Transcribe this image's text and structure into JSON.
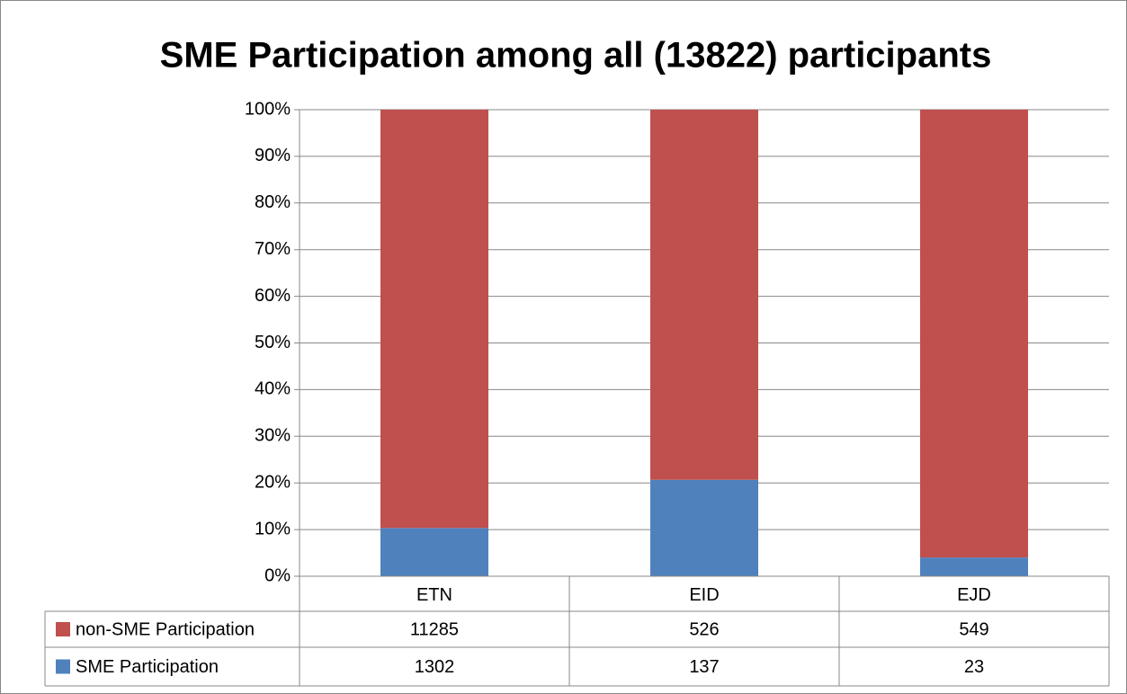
{
  "chart_data": {
    "type": "bar",
    "stacking": "percent",
    "title": "SME Participation among all (13822) participants",
    "categories": [
      "ETN",
      "EID",
      "EJD"
    ],
    "series": [
      {
        "name": "non-SME Participation",
        "color": "#c0504d",
        "values": [
          11285,
          526,
          549
        ]
      },
      {
        "name": "SME Participation",
        "color": "#4f81bd",
        "values": [
          1302,
          137,
          23
        ]
      }
    ],
    "ylim": [
      0,
      100
    ],
    "yticks": [
      {
        "value": 0,
        "label": "0%"
      },
      {
        "value": 10,
        "label": "10%"
      },
      {
        "value": 20,
        "label": "20%"
      },
      {
        "value": 30,
        "label": "30%"
      },
      {
        "value": 40,
        "label": "40%"
      },
      {
        "value": 50,
        "label": "50%"
      },
      {
        "value": 60,
        "label": "60%"
      },
      {
        "value": 70,
        "label": "70%"
      },
      {
        "value": 80,
        "label": "80%"
      },
      {
        "value": 90,
        "label": "90%"
      },
      {
        "value": 100,
        "label": "100%"
      }
    ],
    "grid": true
  }
}
